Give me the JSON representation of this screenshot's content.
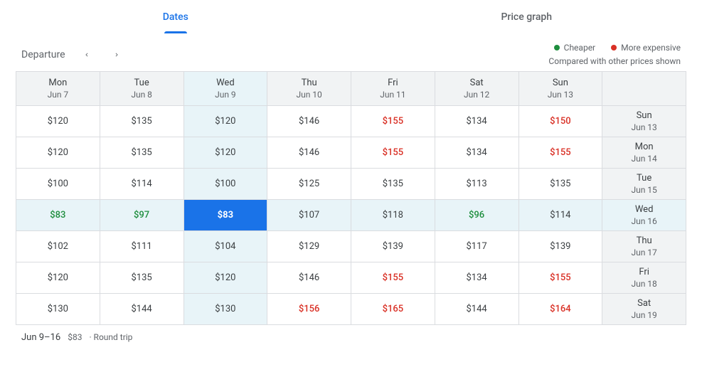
{
  "tabs": {
    "dates": "Dates",
    "price_graph": "Price graph",
    "active": "dates"
  },
  "controls": {
    "departure_label": "Departure"
  },
  "legend": {
    "cheaper": "Cheaper",
    "cheaper_color": "#1e8e3e",
    "expensive": "More expensive",
    "expensive_color": "#d93025",
    "subtext": "Compared with other prices shown"
  },
  "colors": {
    "accent": "#1a73e8",
    "grid_border": "#dadce0",
    "header_bg": "#f1f3f4",
    "highlight_bg": "#e8f4f8",
    "text_muted": "#5f6368",
    "green": "#1e8e3e",
    "red": "#d93025"
  },
  "grid": {
    "col_headers": [
      {
        "dow": "Mon",
        "date": "Jun 7"
      },
      {
        "dow": "Tue",
        "date": "Jun 8"
      },
      {
        "dow": "Wed",
        "date": "Jun 9"
      },
      {
        "dow": "Thu",
        "date": "Jun 10"
      },
      {
        "dow": "Fri",
        "date": "Jun 11"
      },
      {
        "dow": "Sat",
        "date": "Jun 12"
      },
      {
        "dow": "Sun",
        "date": "Jun 13"
      }
    ],
    "row_headers": [
      {
        "dow": "Sun",
        "date": "Jun 13"
      },
      {
        "dow": "Mon",
        "date": "Jun 14"
      },
      {
        "dow": "Tue",
        "date": "Jun 15"
      },
      {
        "dow": "Wed",
        "date": "Jun 16"
      },
      {
        "dow": "Thu",
        "date": "Jun 17"
      },
      {
        "dow": "Fri",
        "date": "Jun 18"
      },
      {
        "dow": "Sat",
        "date": "Jun 19"
      }
    ],
    "selected_col": 2,
    "selected_row": 3,
    "cells": [
      [
        {
          "price": "$120"
        },
        {
          "price": "$135"
        },
        {
          "price": "$120"
        },
        {
          "price": "$146"
        },
        {
          "price": "$155",
          "c": "red"
        },
        {
          "price": "$134"
        },
        {
          "price": "$150",
          "c": "red"
        }
      ],
      [
        {
          "price": "$120"
        },
        {
          "price": "$135"
        },
        {
          "price": "$120"
        },
        {
          "price": "$146"
        },
        {
          "price": "$155",
          "c": "red"
        },
        {
          "price": "$134"
        },
        {
          "price": "$155",
          "c": "red"
        }
      ],
      [
        {
          "price": "$100"
        },
        {
          "price": "$114"
        },
        {
          "price": "$100"
        },
        {
          "price": "$125"
        },
        {
          "price": "$135"
        },
        {
          "price": "$113"
        },
        {
          "price": "$135"
        }
      ],
      [
        {
          "price": "$83",
          "c": "green"
        },
        {
          "price": "$97",
          "c": "green"
        },
        {
          "price": "$83",
          "c": "green"
        },
        {
          "price": "$107"
        },
        {
          "price": "$118"
        },
        {
          "price": "$96",
          "c": "green"
        },
        {
          "price": "$114"
        }
      ],
      [
        {
          "price": "$102"
        },
        {
          "price": "$111"
        },
        {
          "price": "$104"
        },
        {
          "price": "$129"
        },
        {
          "price": "$139"
        },
        {
          "price": "$117"
        },
        {
          "price": "$139"
        }
      ],
      [
        {
          "price": "$120"
        },
        {
          "price": "$135"
        },
        {
          "price": "$120"
        },
        {
          "price": "$146"
        },
        {
          "price": "$155",
          "c": "red"
        },
        {
          "price": "$134"
        },
        {
          "price": "$155",
          "c": "red"
        }
      ],
      [
        {
          "price": "$130"
        },
        {
          "price": "$144"
        },
        {
          "price": "$130"
        },
        {
          "price": "$156",
          "c": "red"
        },
        {
          "price": "$165",
          "c": "red"
        },
        {
          "price": "$144"
        },
        {
          "price": "$164",
          "c": "red"
        }
      ]
    ]
  },
  "footer": {
    "range": "Jun 9–16",
    "price": "$83",
    "trip": "· Round trip"
  }
}
